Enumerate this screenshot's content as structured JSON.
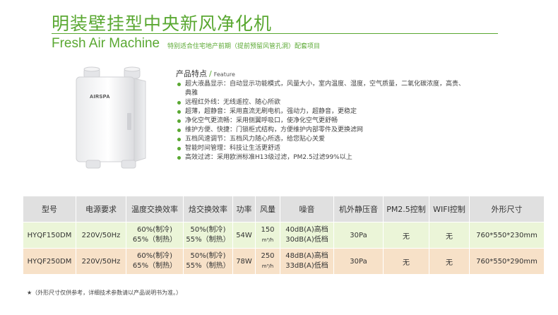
{
  "header": {
    "title_cn": "明装壁挂型中央新风净化机",
    "title_en": "Fresh Air Machine",
    "subtitle": "特别适合住宅地产前期（提前预留风管孔洞）配套项目",
    "accent_color": "#5aa832"
  },
  "product": {
    "brand": "AIRSPA"
  },
  "features": {
    "heading_cn": "产品特点",
    "heading_slash": "/",
    "heading_en": "Feature",
    "items": [
      "超大液晶显示：自动显示功能模式，风量大小，室内温度、湿度，空气质量，二氧化碳浓度，高贵、典雅",
      "远程红外线：无线遥控、随心所欲",
      "超薄，超静音：采用直流无刷电机，强动力，超静音，更稳定",
      "净化空气更流畅：采用侧翼呼吸口，使净化空气更舒畅",
      "维护方便、快捷：门锁柜式结构，方便维护内部零件及更换滤网",
      "五档风速调节：五档风力随心所选，给您贴心关爱",
      "智能时间管理：科技让生活更舒适",
      "高效过滤：采用欧洲标准H13级过滤，PM2.5过滤99%以上"
    ]
  },
  "table": {
    "headers": [
      "型号",
      "电源要求",
      "温度交换效率",
      "焓交换效率",
      "功率",
      "风量",
      "噪音",
      "机外静压音",
      "PM2.5控制",
      "WIFI控制",
      "外形尺寸"
    ],
    "rows": [
      {
        "model": "HYQF150DM",
        "power_req": "220V/50Hz",
        "temp_eff_1": "60%(制冷)",
        "temp_eff_2": "65%（制热）",
        "enth_eff_1": "50%(制冷)",
        "enth_eff_2": "55%（制热）",
        "power": "54W",
        "airflow": "150",
        "airflow_unit": "m³/h",
        "noise_1": "40dB(A)高档",
        "noise_2": "30dB(A)低档",
        "static_pressure": "30Pa",
        "pm25": "无",
        "wifi": "无",
        "dimensions": "760*550*230mm"
      },
      {
        "model": "HYQF250DM",
        "power_req": "220V/50Hz",
        "temp_eff_1": "60%(制冷)",
        "temp_eff_2": "65%（制热）",
        "enth_eff_1": "50%(制冷)",
        "enth_eff_2": "55%（制热）",
        "power": "78W",
        "airflow": "250",
        "airflow_unit": "m³/h",
        "noise_1": "48dB(A)高档",
        "noise_2": "33dB(A)低档",
        "static_pressure": "30Pa",
        "pm25": "无",
        "wifi": "无",
        "dimensions": "760*550*290mm"
      }
    ]
  },
  "note": "★（外形尺寸仅供参考，详细技术参数请以产品说明书为准。）"
}
